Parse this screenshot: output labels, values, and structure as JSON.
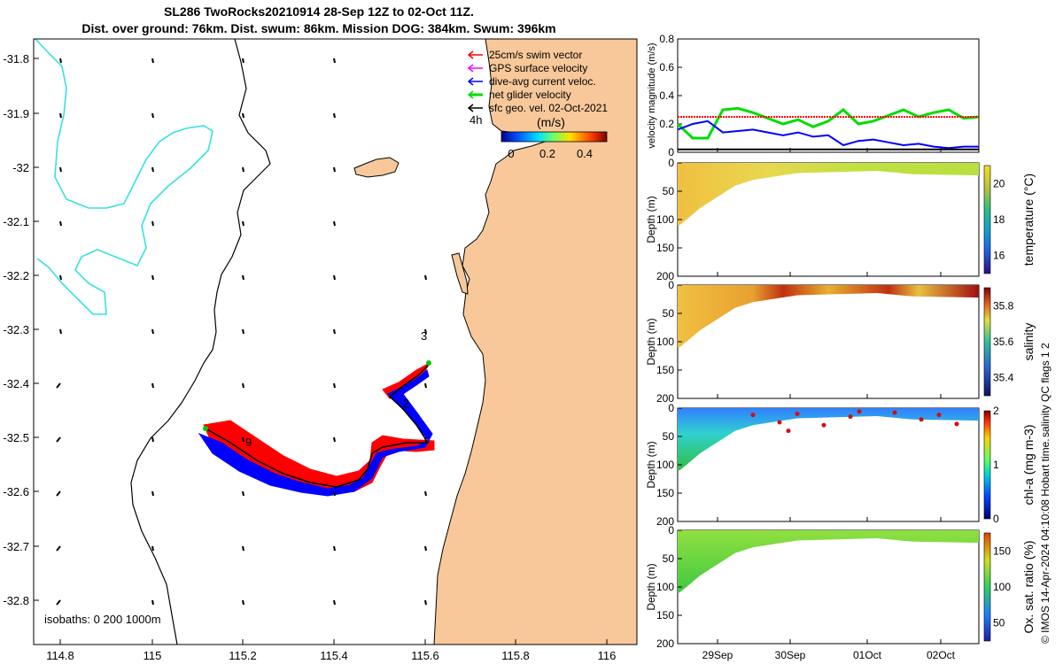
{
  "titles": {
    "line1": "SL286 TwoRocks20210914 28-Sep 12Z to 02-Oct 11Z.",
    "line2": "Dist. over ground: 76km. Dist. swum: 86km. Mission DOG: 384km. Swum: 396km"
  },
  "map": {
    "lon_ticks": [
      "114.8",
      "115",
      "115.2",
      "115.4",
      "115.6",
      "115.8",
      "116"
    ],
    "lat_ticks": [
      "-31.8",
      "-31.9",
      "-32",
      "-32.1",
      "-32.2",
      "-32.3",
      "-32.4",
      "-32.5",
      "-32.6",
      "-32.7",
      "-32.8"
    ],
    "legend": [
      {
        "label": "25cm/s swim vector",
        "color": "#ff0000"
      },
      {
        "label": "GPS surface velocity",
        "color": "#ff00ff"
      },
      {
        "label": "dive-avg current veloc.",
        "color": "#0000ff"
      },
      {
        "label": "net glider velocity",
        "color": "#00dd00"
      },
      {
        "label": "sfc geo. vel. 02-Oct-2021",
        "color": "#000000"
      }
    ],
    "time_label": "4h",
    "colorbar_unit": "(m/s)",
    "colorbar_ticks": [
      "0",
      "0.2",
      "0.4"
    ],
    "isobaths_label": "isobaths: 0   200  1000m",
    "track_day_labels": [
      "3",
      "2",
      "9"
    ],
    "colors": {
      "land": "#f8c89a",
      "track_blue": "#0000ff",
      "track_red": "#ff0000",
      "isobath_200": "#000000",
      "isobath_1000": "#33dddd"
    }
  },
  "chart_data": [
    {
      "type": "line",
      "title": "",
      "ylabel": "velocity magnitude (m/s)",
      "ylim": [
        0,
        0.8
      ],
      "yticks": [
        "0",
        "0.2",
        "0.4",
        "0.6",
        "0.8"
      ],
      "x": [
        0,
        0.05,
        0.1,
        0.15,
        0.2,
        0.25,
        0.3,
        0.35,
        0.4,
        0.45,
        0.5,
        0.55,
        0.6,
        0.65,
        0.7,
        0.75,
        0.8,
        0.85,
        0.9,
        0.95,
        1.0
      ],
      "series": [
        {
          "name": "net glider velocity",
          "color": "#00dd00",
          "values": [
            0.2,
            0.1,
            0.1,
            0.3,
            0.31,
            0.28,
            0.24,
            0.2,
            0.23,
            0.18,
            0.22,
            0.3,
            0.2,
            0.22,
            0.26,
            0.3,
            0.25,
            0.28,
            0.3,
            0.24,
            0.25
          ]
        },
        {
          "name": "dive-avg current veloc.",
          "color": "#0000ff",
          "values": [
            0.16,
            0.2,
            0.22,
            0.14,
            0.15,
            0.16,
            0.14,
            0.12,
            0.14,
            0.11,
            0.12,
            0.05,
            0.08,
            0.09,
            0.07,
            0.05,
            0.06,
            0.04,
            0.03,
            0.04,
            0.04
          ]
        },
        {
          "name": "25cm/s swim vector",
          "color": "#ff0000",
          "values": [
            0.25,
            0.25,
            0.25,
            0.25,
            0.25,
            0.25,
            0.25,
            0.25,
            0.25,
            0.25,
            0.25,
            0.25,
            0.25,
            0.25,
            0.25,
            0.25,
            0.25,
            0.25,
            0.25,
            0.25,
            0.25
          ]
        },
        {
          "name": "sfc geo. vel. 02-Oct-2021",
          "color": "#000000",
          "values": [
            0.02,
            0.02,
            0.02,
            0.02,
            0.02,
            0.02,
            0.02,
            0.02,
            0.02,
            0.02,
            0.02,
            0.02,
            0.02,
            0.02,
            0.02,
            0.02,
            0.02,
            0.02,
            0.02,
            0.02,
            0.02
          ]
        }
      ]
    },
    {
      "type": "heatmap",
      "ylabel": "Depth (m)",
      "ylim": [
        200,
        0
      ],
      "yticks": [
        "0",
        "50",
        "100",
        "150",
        "200"
      ],
      "colorbar_label": "temperature (°C)",
      "colorbar_ticks": [
        "16",
        "18",
        "20"
      ],
      "clim": [
        15,
        21
      ]
    },
    {
      "type": "heatmap",
      "ylabel": "Depth (m)",
      "ylim": [
        200,
        0
      ],
      "yticks": [
        "0",
        "50",
        "100",
        "150",
        "200"
      ],
      "colorbar_label": "salinity",
      "colorbar_ticks": [
        "35.4",
        "35.6",
        "35.8"
      ],
      "clim": [
        35.3,
        35.9
      ]
    },
    {
      "type": "heatmap",
      "ylabel": "Depth (m)",
      "ylim": [
        200,
        0
      ],
      "yticks": [
        "0",
        "50",
        "100",
        "150",
        "200"
      ],
      "colorbar_label": "chl-a (mg m-3)",
      "colorbar_ticks": [
        "0",
        "1",
        "2"
      ],
      "clim": [
        0,
        2
      ]
    },
    {
      "type": "heatmap",
      "ylabel": "Depth (m)",
      "ylim": [
        200,
        0
      ],
      "yticks": [
        "0",
        "50",
        "100",
        "150",
        "200"
      ],
      "colorbar_label": "Ox. sat. ratio (%)",
      "colorbar_ticks": [
        "50",
        "100",
        "150"
      ],
      "clim": [
        25,
        175
      ]
    }
  ],
  "time_axis": {
    "ticks": [
      "29Sep",
      "30Sep",
      "01Oct",
      "02Oct"
    ]
  },
  "side_labels": {
    "qc": "salinity QC flags 1 2",
    "credit": "© IMOS 14-Apr-2024 04:10:08 Hobart time."
  }
}
